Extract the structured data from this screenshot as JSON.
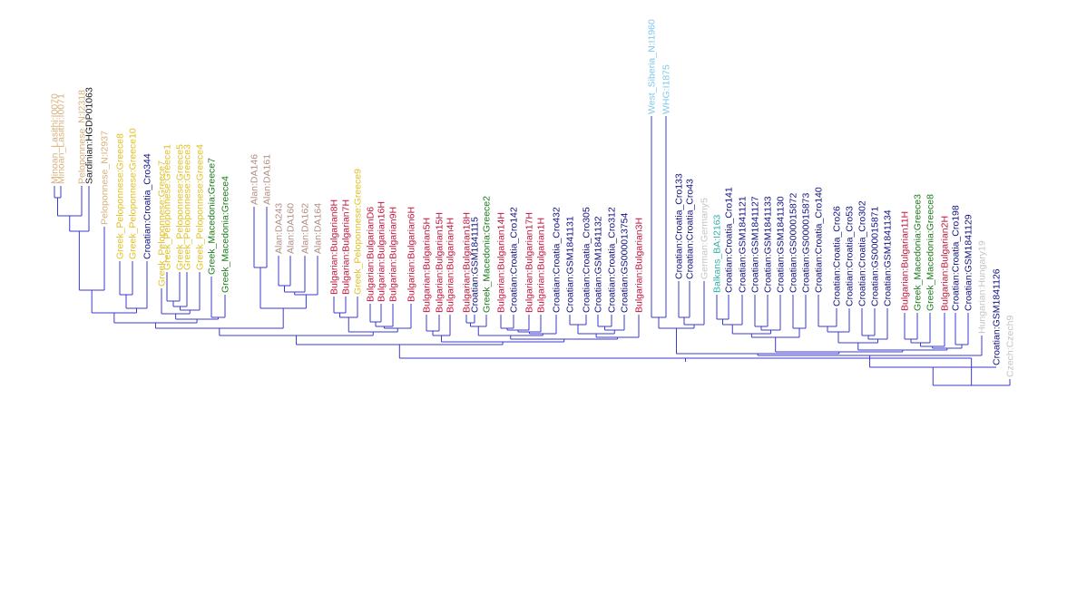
{
  "colors": {
    "minoan": "#d8b07a",
    "peloponnese": "#d8b07a",
    "sardinian": "#1a1a1a",
    "greek": "#e0c020",
    "croatian": "#101080",
    "macedonia": "#1a7a1a",
    "alan": "#b08f86",
    "bulgarian": "#c0143c",
    "siberia": "#80c8ec",
    "german": "#c4c4c4",
    "balkans": "#30b0a8",
    "hungarian": "#c4c4c4",
    "czech": "#c4c4c4",
    "branch": "#3a3ad0"
  },
  "tree": {
    "leaves": [
      {
        "label": "Minoan_Lasithi:I0070",
        "group": "minoan"
      },
      {
        "label": "Minoan_Lasithi:I0071",
        "group": "minoan"
      },
      {
        "label": "Peloponnese_N:I2318",
        "group": "peloponnese"
      },
      {
        "label": "Sardinian:HGDP01063",
        "group": "sardinian"
      },
      {
        "label": "Peloponnese_N:I2937",
        "group": "peloponnese"
      },
      {
        "label": "Greek_Peloponnese:Greece8",
        "group": "greek"
      },
      {
        "label": "Greek_Peloponnese:Greece10",
        "group": "greek"
      },
      {
        "label": "Croatian:Croatia_Cro344",
        "group": "croatian"
      },
      {
        "label": "Greek_Peloponnese:Greece7",
        "group": "greek"
      },
      {
        "label": "Greek_Peloponnese:Greece1",
        "group": "greek"
      },
      {
        "label": "Greek_Peloponnese:Greece5",
        "group": "greek"
      },
      {
        "label": "Greek_Peloponnese:Greece3",
        "group": "greek"
      },
      {
        "label": "Greek_Peloponnese:Greece4",
        "group": "greek"
      },
      {
        "label": "Greek_Macedonia:Greece7",
        "group": "macedonia"
      },
      {
        "label": "Greek_Macedonia:Greece4",
        "group": "macedonia"
      },
      {
        "label": "Alan:DA146",
        "group": "alan"
      },
      {
        "label": "Alan:DA161",
        "group": "alan"
      },
      {
        "label": "Alan:DA243",
        "group": "alan"
      },
      {
        "label": "Alan:DA160",
        "group": "alan"
      },
      {
        "label": "Alan:DA162",
        "group": "alan"
      },
      {
        "label": "Alan:DA164",
        "group": "alan"
      },
      {
        "label": "Bulgarian:Bulgarian8H",
        "group": "bulgarian"
      },
      {
        "label": "Bulgarian:Bulgarian7H",
        "group": "bulgarian"
      },
      {
        "label": "Greek_Peloponnese:Greece9",
        "group": "greek"
      },
      {
        "label": "Bulgarian:BulgarianD6",
        "group": "bulgarian"
      },
      {
        "label": "Bulgarian:Bulgarian16H",
        "group": "bulgarian"
      },
      {
        "label": "Bulgarian:Bulgarian9H",
        "group": "bulgarian"
      },
      {
        "label": "Bulgarian:Bulgarian6H",
        "group": "bulgarian"
      },
      {
        "label": "Bulgarian:Bulgarian5H",
        "group": "bulgarian"
      },
      {
        "label": "Bulgarian:Bulgarian15H",
        "group": "bulgarian"
      },
      {
        "label": "Bulgarian:Bulgarian4H",
        "group": "bulgarian"
      },
      {
        "label": "Bulgarian:Bulgarian18H",
        "group": "bulgarian"
      },
      {
        "label": "Croatian:GSM1841115",
        "group": "croatian"
      },
      {
        "label": "Greek_Macedonia:Greece2",
        "group": "macedonia"
      },
      {
        "label": "Bulgarian:Bulgarian14H",
        "group": "bulgarian"
      },
      {
        "label": "Croatian:Croatia_Cro142",
        "group": "croatian"
      },
      {
        "label": "Bulgarian:Bulgarian17H",
        "group": "bulgarian"
      },
      {
        "label": "Bulgarian:Bulgarian1H",
        "group": "bulgarian"
      },
      {
        "label": "Croatian:Croatia_Cro432",
        "group": "croatian"
      },
      {
        "label": "Croatian:GSM1841131",
        "group": "croatian"
      },
      {
        "label": "Croatian:Croatia_Cro305",
        "group": "croatian"
      },
      {
        "label": "Croatian:GSM1841132",
        "group": "croatian"
      },
      {
        "label": "Croatian:Croatia_Cro312",
        "group": "croatian"
      },
      {
        "label": "Croatian:GS000013754",
        "group": "croatian"
      },
      {
        "label": "Bulgarian:Bulgarian3H",
        "group": "bulgarian"
      },
      {
        "label": "West_Siberia_N:I1960",
        "group": "siberia"
      },
      {
        "label": "WHG:I1875",
        "group": "siberia"
      },
      {
        "label": "Croatian:Croatia_Cro133",
        "group": "croatian"
      },
      {
        "label": "Croatian:Croatia_Cro43",
        "group": "croatian"
      },
      {
        "label": "German:Germany5",
        "group": "german"
      },
      {
        "label": "Balkans_BA:I2163",
        "group": "balkans"
      },
      {
        "label": "Croatian:Croatia_Cro141",
        "group": "croatian"
      },
      {
        "label": "Croatian:GSM1841121",
        "group": "croatian"
      },
      {
        "label": "Croatian:GSM1841127",
        "group": "croatian"
      },
      {
        "label": "Croatian:GSM1841133",
        "group": "croatian"
      },
      {
        "label": "Croatian:GSM1841130",
        "group": "croatian"
      },
      {
        "label": "Croatian:GS000015872",
        "group": "croatian"
      },
      {
        "label": "Croatian:GS000015873",
        "group": "croatian"
      },
      {
        "label": "Croatian:Croatia_Cro140",
        "group": "croatian"
      },
      {
        "label": "Croatian:Croatia_Cro26",
        "group": "croatian"
      },
      {
        "label": "Croatian:Croatia_Cro53",
        "group": "croatian"
      },
      {
        "label": "Croatian:Croatia_Cro302",
        "group": "croatian"
      },
      {
        "label": "Croatian:GS000015871",
        "group": "croatian"
      },
      {
        "label": "Croatian:GSM1841134",
        "group": "croatian"
      },
      {
        "label": "Bulgarian:Bulgarian11H",
        "group": "bulgarian"
      },
      {
        "label": "Greek_Macedonia:Greece3",
        "group": "macedonia"
      },
      {
        "label": "Greek_Macedonia:Greece8",
        "group": "macedonia"
      },
      {
        "label": "Bulgarian:Bulgarian2H",
        "group": "bulgarian"
      },
      {
        "label": "Croatian:Croatia_Cro198",
        "group": "croatian"
      },
      {
        "label": "Croatian:GSM1841129",
        "group": "croatian"
      },
      {
        "label": "Hungarian:Hungary19",
        "group": "hungarian"
      },
      {
        "label": "Croatian:GSM1841126",
        "group": "croatian"
      },
      {
        "label": "Czech:Czech9",
        "group": "czech"
      }
    ]
  }
}
